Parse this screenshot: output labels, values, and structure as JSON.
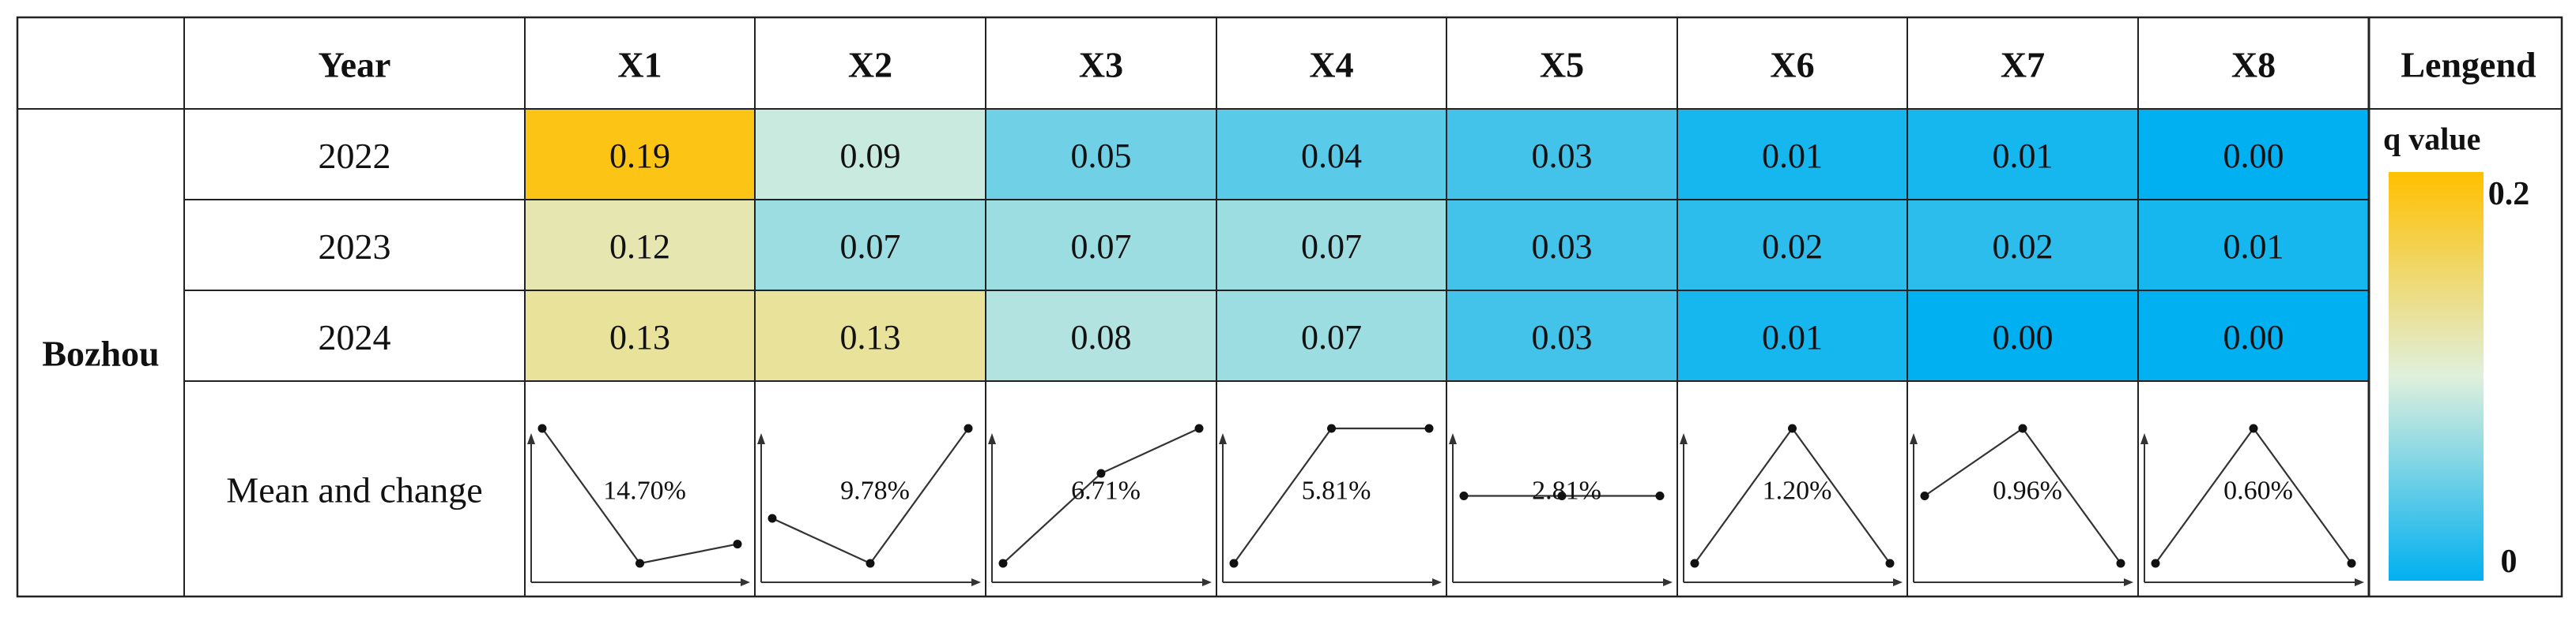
{
  "chart_data": {
    "type": "heatmap",
    "title": "",
    "row_group": "Bozhou",
    "corner_header": "",
    "year_header": "Year",
    "columns": [
      "X1",
      "X2",
      "X3",
      "X4",
      "X5",
      "X6",
      "X7",
      "X8"
    ],
    "rows": [
      {
        "year": "2022",
        "values": [
          0.19,
          0.09,
          0.05,
          0.04,
          0.03,
          0.01,
          0.01,
          0.0
        ]
      },
      {
        "year": "2023",
        "values": [
          0.12,
          0.07,
          0.07,
          0.07,
          0.03,
          0.02,
          0.02,
          0.01
        ]
      },
      {
        "year": "2024",
        "values": [
          0.13,
          0.13,
          0.08,
          0.07,
          0.03,
          0.01,
          0.0,
          0.0
        ]
      }
    ],
    "value_labels": [
      [
        "0.19",
        "0.09",
        "0.05",
        "0.04",
        "0.03",
        "0.01",
        "0.01",
        "0.00"
      ],
      [
        "0.12",
        "0.07",
        "0.07",
        "0.07",
        "0.03",
        "0.02",
        "0.02",
        "0.01"
      ],
      [
        "0.13",
        "0.13",
        "0.08",
        "0.07",
        "0.03",
        "0.01",
        "0.00",
        "0.00"
      ]
    ],
    "mean_row_label": "Mean and change",
    "mean_change_labels": [
      "14.70%",
      "9.78%",
      "6.71%",
      "5.81%",
      "2.81%",
      "1.20%",
      "0.96%",
      "0.60%"
    ],
    "legend": {
      "header": "Lengend",
      "title": "q value",
      "max_label": "0.2",
      "min_label": "0",
      "range": [
        0,
        0.2
      ],
      "colors": [
        "#00b0f0",
        "#dff0dc",
        "#ffc000"
      ]
    }
  }
}
